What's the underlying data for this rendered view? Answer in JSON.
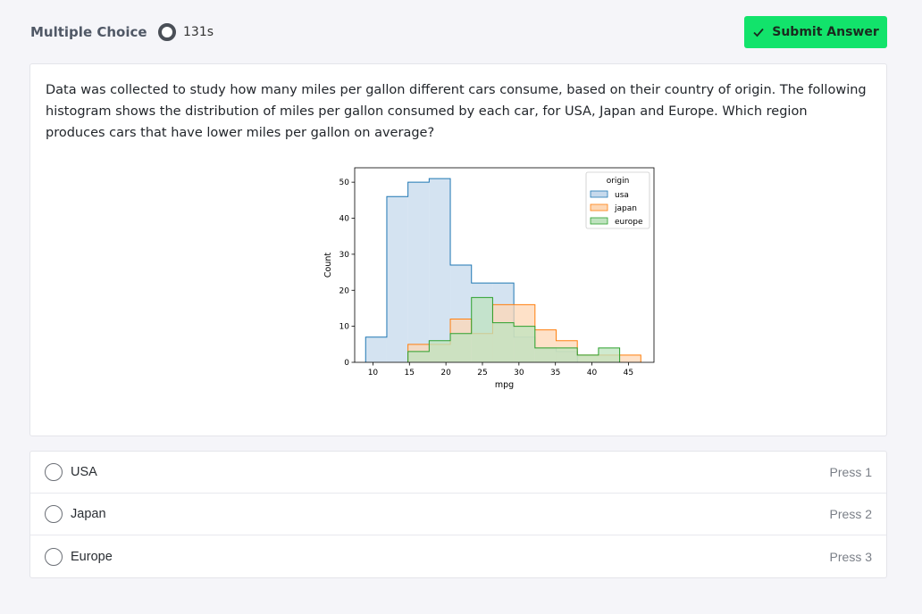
{
  "header": {
    "question_type": "Multiple Choice",
    "timer": "131s",
    "submit_label": "Submit Answer"
  },
  "question": {
    "text": "Data was collected to study how many miles per gallon different cars consume, based on their country of origin. The following histogram shows the distribution of miles per gallon consumed by each car, for USA, Japan and Europe. Which region produces cars that have lower miles per gallon on average?"
  },
  "chart_data": {
    "type": "histogram",
    "xlabel": "mpg",
    "ylabel": "Count",
    "xlim": [
      7.5,
      48.5
    ],
    "ylim": [
      0,
      54
    ],
    "xticks": [
      10,
      15,
      20,
      25,
      30,
      35,
      40,
      45
    ],
    "yticks": [
      0,
      10,
      20,
      30,
      40,
      50
    ],
    "legend": {
      "title": "origin",
      "position": "top-right"
    },
    "bin_edges": [
      9.0,
      11.9,
      14.8,
      17.7,
      20.6,
      23.5,
      26.4,
      29.3,
      32.2,
      35.1,
      38.0,
      40.9,
      43.8,
      46.7
    ],
    "series": [
      {
        "name": "usa",
        "color": "#1f77b4",
        "fill": "#c6d9ec",
        "values": [
          7,
          46,
          50,
          51,
          27,
          22,
          22,
          7,
          4,
          3,
          0,
          0,
          0
        ]
      },
      {
        "name": "japan",
        "color": "#ff7f0e",
        "fill": "#fdd7b5",
        "values": [
          0,
          0,
          5,
          5,
          12,
          8,
          16,
          16,
          9,
          6,
          2,
          2,
          2
        ]
      },
      {
        "name": "europe",
        "color": "#2ca02c",
        "fill": "#bfe3bf",
        "values": [
          0,
          0,
          3,
          6,
          8,
          18,
          11,
          10,
          4,
          4,
          2,
          4,
          0
        ]
      }
    ]
  },
  "options": [
    {
      "label": "USA",
      "hint": "Press 1"
    },
    {
      "label": "Japan",
      "hint": "Press 2"
    },
    {
      "label": "Europe",
      "hint": "Press 3"
    }
  ]
}
